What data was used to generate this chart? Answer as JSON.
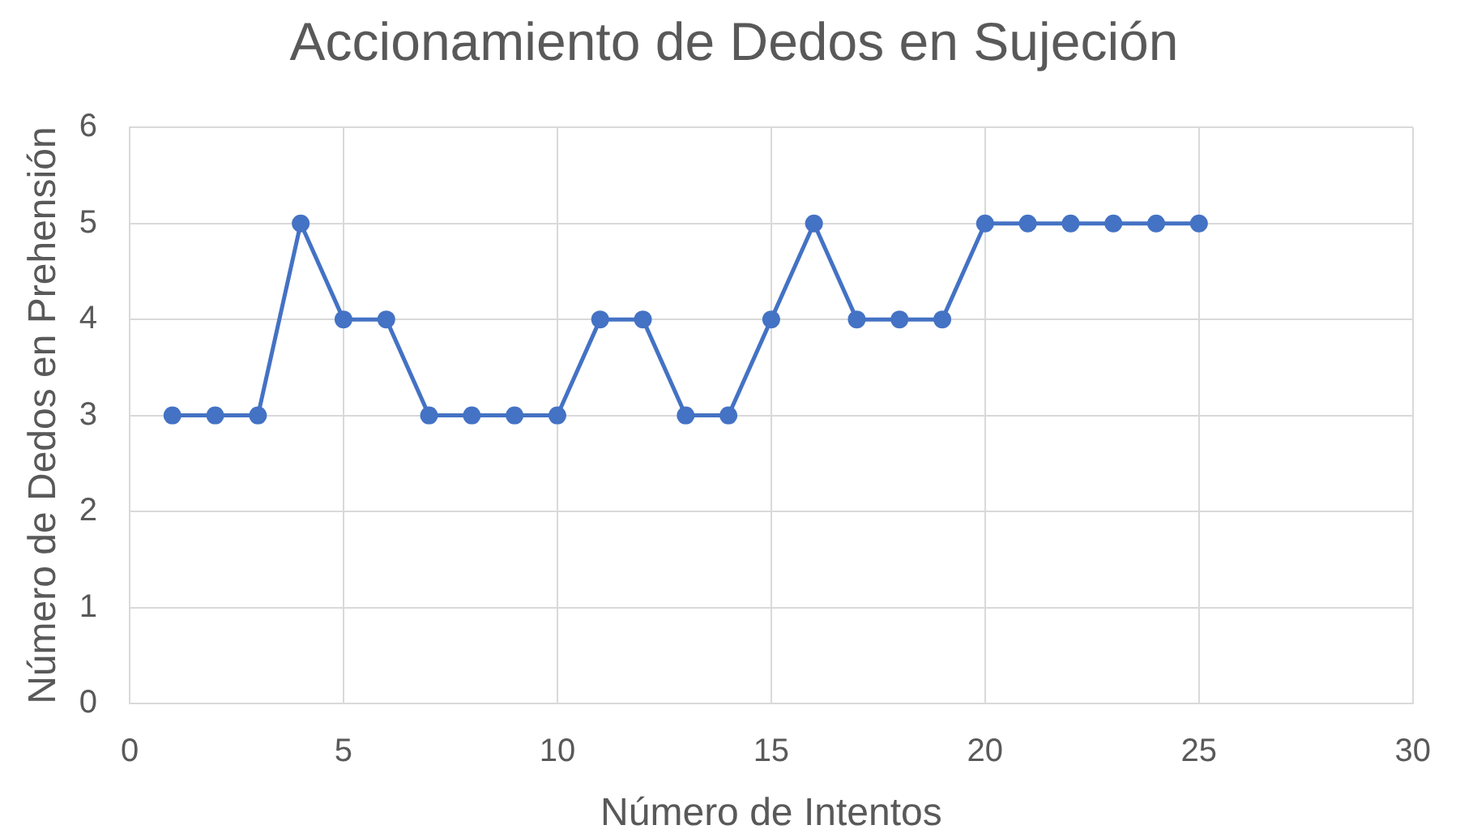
{
  "chart_data": {
    "type": "line",
    "title": "Accionamiento de Dedos en Sujeción",
    "xlabel": "Número de Intentos",
    "ylabel": "Número de Dedos en Prehensión",
    "x": [
      1,
      2,
      3,
      4,
      5,
      6,
      7,
      8,
      9,
      10,
      11,
      12,
      13,
      14,
      15,
      16,
      17,
      18,
      19,
      20,
      21,
      22,
      23,
      24,
      25
    ],
    "series": [
      {
        "color": "#4472c4",
        "values": [
          3,
          3,
          3,
          5,
          4,
          4,
          3,
          3,
          3,
          3,
          4,
          4,
          3,
          3,
          4,
          5,
          4,
          4,
          4,
          5,
          5,
          5,
          5,
          5,
          5
        ]
      }
    ],
    "xlim": [
      0,
      30
    ],
    "xticks": [
      0,
      5,
      10,
      15,
      20,
      25,
      30
    ],
    "ylim": [
      0,
      6
    ],
    "yticks": [
      0,
      1,
      2,
      3,
      4,
      5,
      6
    ],
    "grid": true,
    "marker": "circle",
    "line_style": "solid"
  }
}
